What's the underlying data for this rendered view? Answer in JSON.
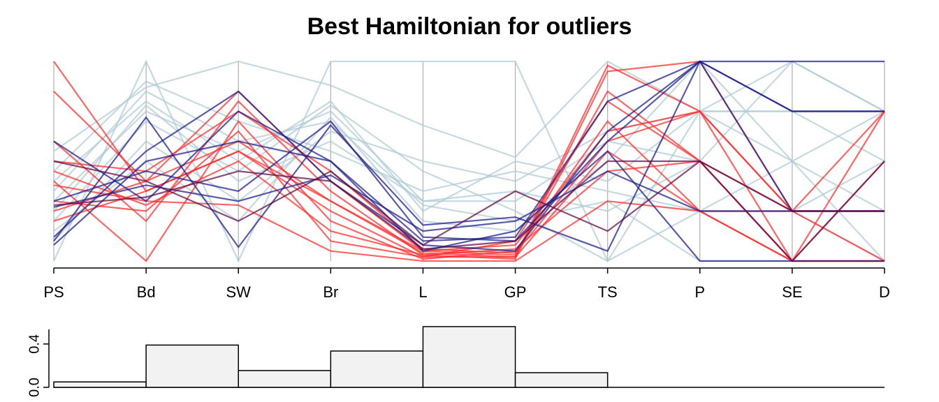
{
  "chart_data": [
    {
      "type": "parallel",
      "title": "Best Hamiltonian for outliers",
      "categories": [
        "PS",
        "Bd",
        "SW",
        "Br",
        "L",
        "GP",
        "TS",
        "P",
        "SE",
        "D"
      ],
      "ylim": [
        0,
        1
      ],
      "lines": [
        {
          "color": "#aecbd6",
          "values": [
            0.0,
            1.0,
            0.0,
            1.0,
            1.0,
            1.0,
            0.0,
            0.75,
            1.0,
            0.75
          ]
        },
        {
          "color": "#aecbd6",
          "values": [
            0.55,
            0.87,
            1.0,
            0.88,
            0.68,
            0.52,
            1.0,
            0.75,
            0.5,
            0.0
          ]
        },
        {
          "color": "#aecbd6",
          "values": [
            0.4,
            0.8,
            0.5,
            0.8,
            0.25,
            0.5,
            0.4,
            0.75,
            0.75,
            0.75
          ]
        },
        {
          "color": "#aecbd6",
          "values": [
            0.3,
            0.75,
            0.55,
            0.75,
            0.3,
            0.3,
            0.6,
            0.5,
            1.0,
            0.75
          ]
        },
        {
          "color": "#aecbd6",
          "values": [
            0.2,
            0.7,
            0.45,
            0.78,
            0.45,
            0.25,
            0.0,
            0.25,
            0.25,
            0.5
          ]
        },
        {
          "color": "#aecbd6",
          "values": [
            0.35,
            0.85,
            0.6,
            0.7,
            0.28,
            0.2,
            0.3,
            0.0,
            0.0,
            0.0
          ]
        },
        {
          "color": "#aecbd6",
          "values": [
            0.1,
            0.6,
            0.3,
            0.65,
            0.5,
            0.4,
            0.65,
            0.75,
            0.75,
            0.5
          ]
        },
        {
          "color": "#aecbd6",
          "values": [
            0.25,
            0.78,
            0.4,
            0.6,
            0.3,
            0.35,
            0.25,
            0.5,
            0.25,
            0.0
          ]
        },
        {
          "color": "#aecbd6",
          "values": [
            0.15,
            0.5,
            0.2,
            0.72,
            0.2,
            0.15,
            0.5,
            1.0,
            0.5,
            0.25
          ]
        },
        {
          "color": "#aecbd6",
          "values": [
            0.45,
            0.9,
            0.7,
            0.55,
            0.35,
            0.45,
            0.35,
            0.25,
            0.5,
            0.75
          ]
        },
        {
          "color": "#ff2a2a",
          "values": [
            1.0,
            0.35,
            0.55,
            0.25,
            0.02,
            0.02,
            0.98,
            0.75,
            0.25,
            0.75
          ]
        },
        {
          "color": "#ff2a2a",
          "values": [
            0.85,
            0.4,
            0.6,
            0.3,
            0.05,
            0.03,
            0.85,
            0.5,
            0.0,
            0.5
          ]
        },
        {
          "color": "#ff2a2a",
          "values": [
            0.6,
            0.2,
            0.8,
            0.35,
            0.03,
            0.01,
            0.95,
            1.0,
            0.25,
            0.25
          ]
        },
        {
          "color": "#ff2a2a",
          "values": [
            0.4,
            0.0,
            0.7,
            0.2,
            0.01,
            0.05,
            0.7,
            0.25,
            0.0,
            0.0
          ]
        },
        {
          "color": "#ff2a2a",
          "values": [
            0.5,
            0.45,
            0.75,
            0.45,
            0.06,
            0.04,
            0.6,
            0.75,
            0.0,
            0.0
          ]
        },
        {
          "color": "#ff2a2a",
          "values": [
            0.3,
            0.25,
            0.65,
            0.1,
            0.02,
            0.1,
            0.8,
            0.5,
            0.25,
            0.0
          ]
        },
        {
          "color": "#ff2a2a",
          "values": [
            0.2,
            0.35,
            0.55,
            0.3,
            0.04,
            0.02,
            0.55,
            0.25,
            0.25,
            0.25
          ]
        },
        {
          "color": "#ff2a2a",
          "values": [
            0.38,
            0.3,
            0.28,
            0.05,
            0.0,
            0.0,
            0.3,
            0.25,
            0.0,
            0.0
          ]
        },
        {
          "color": "#ff2a2a",
          "values": [
            0.25,
            0.4,
            0.85,
            0.4,
            0.05,
            0.08,
            0.65,
            0.75,
            0.25,
            0.25
          ]
        },
        {
          "color": "#ff2a2a",
          "values": [
            0.45,
            0.28,
            0.5,
            0.15,
            0.03,
            0.06,
            0.45,
            0.5,
            0.0,
            0.75
          ]
        },
        {
          "color": "#1c1c8c",
          "values": [
            0.1,
            0.72,
            0.07,
            0.68,
            0.18,
            0.22,
            0.05,
            1.0,
            1.0,
            1.0
          ]
        },
        {
          "color": "#1c1c8c",
          "values": [
            0.12,
            0.55,
            0.85,
            0.4,
            0.08,
            0.05,
            0.65,
            1.0,
            0.75,
            0.75
          ]
        },
        {
          "color": "#1c1c8c",
          "values": [
            0.6,
            0.3,
            0.75,
            0.5,
            0.1,
            0.12,
            0.8,
            1.0,
            0.25,
            0.25
          ]
        },
        {
          "color": "#1c1c8c",
          "values": [
            0.27,
            0.38,
            0.3,
            0.43,
            0.15,
            0.2,
            0.45,
            0.25,
            0.25,
            0.25
          ]
        },
        {
          "color": "#1c1c8c",
          "values": [
            0.08,
            0.5,
            0.6,
            0.5,
            0.05,
            0.15,
            0.55,
            0.0,
            0.0,
            0.0
          ]
        },
        {
          "color": "#1c1c8c",
          "values": [
            0.3,
            0.45,
            0.35,
            0.7,
            0.12,
            0.1,
            0.6,
            1.0,
            0.75,
            0.75
          ]
        },
        {
          "color": "#5e0a45",
          "values": [
            0.5,
            0.4,
            0.2,
            0.45,
            0.08,
            0.35,
            0.15,
            0.5,
            0.0,
            0.5
          ]
        },
        {
          "color": "#5e0a45",
          "values": [
            0.28,
            0.32,
            0.45,
            0.4,
            0.06,
            0.1,
            0.5,
            0.5,
            0.25,
            0.25
          ]
        }
      ]
    },
    {
      "type": "bar",
      "categories": [
        null,
        null,
        null,
        null,
        null,
        null,
        null,
        null,
        null
      ],
      "values": [
        0.05,
        0.39,
        0.155,
        0.335,
        0.56,
        0.135,
        0,
        0,
        0
      ],
      "color": "#f2f2f2",
      "ylim": [
        0,
        0.56
      ],
      "yticks": [
        {
          "value": 0,
          "label": "0.0"
        },
        {
          "value": 0.4,
          "label": "0.4"
        }
      ]
    }
  ]
}
